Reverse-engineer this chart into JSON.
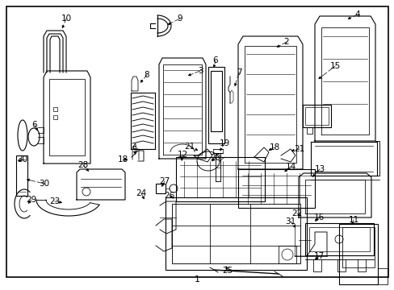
{
  "background_color": "#ffffff",
  "border_color": "#000000",
  "line_color": "#000000",
  "text_color": "#000000",
  "bottom_label": "1",
  "fig_w": 4.89,
  "fig_h": 3.6,
  "dpi": 100
}
